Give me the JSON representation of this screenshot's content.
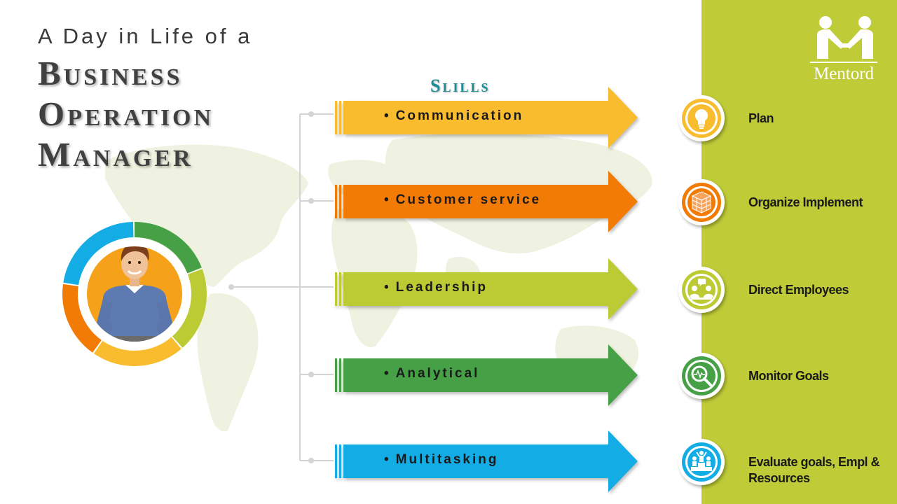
{
  "title": {
    "line1": "A Day in Life of a",
    "line2": "Business",
    "line3": "Operation",
    "line4": "Manager"
  },
  "skills_heading": "Slills",
  "logo": {
    "text": "Mentord",
    "icon": "handshake-icon"
  },
  "skills": [
    {
      "label": "Communication",
      "color": "#f8bc2e"
    },
    {
      "label": "Customer service",
      "color": "#f27b06"
    },
    {
      "label": "Leadership",
      "color": "#bccb34"
    },
    {
      "label": "Analytical",
      "color": "#45a046"
    },
    {
      "label": "Multitasking",
      "color": "#13ace4"
    }
  ],
  "bullet": "•",
  "steps": [
    {
      "label": "Plan",
      "icon": "lightbulb-icon",
      "color": "#f8bc2e"
    },
    {
      "label": "Organize Implement",
      "icon": "bricks-icon",
      "color": "#f27b06"
    },
    {
      "label": "Direct Employees",
      "icon": "meeting-icon",
      "color": "#bccb34"
    },
    {
      "label": "Monitor Goals",
      "icon": "magnifier-pulse-icon",
      "color": "#45a046"
    },
    {
      "label": "Evaluate goals, Empl & Resources",
      "icon": "podium-icon",
      "color": "#13ace4"
    }
  ],
  "colors": {
    "panel": "#bfcb37",
    "skills_heading": "#1c8d96",
    "ring": [
      "#45a046",
      "#bccb34",
      "#f8bc2e",
      "#f27b06",
      "#13ace4"
    ]
  },
  "avatar_icon": "businessman-icon"
}
